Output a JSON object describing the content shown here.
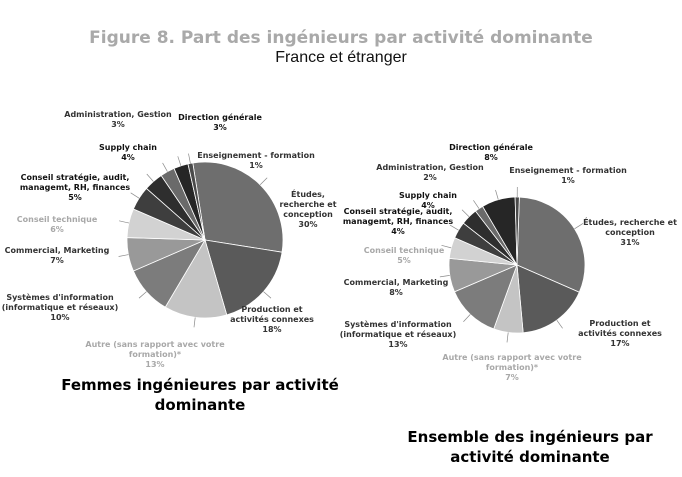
{
  "figure": {
    "title": "Figure 8. Part des ingénieurs par activité dominante",
    "subtitle": "France et étranger"
  },
  "captions": {
    "left": [
      "Femmes ingénieures par activité",
      "dominante"
    ],
    "right": [
      "Ensemble des ingénieurs par",
      "activité dominante"
    ]
  },
  "chart_data": [
    {
      "type": "pie",
      "title": "Femmes ingénieures par activité dominante",
      "slices": [
        {
          "label": [
            "Études,",
            "recherche et",
            "conception"
          ],
          "value": 30,
          "display": "30%",
          "color": "#6e6e6e",
          "label_color": "#333333"
        },
        {
          "label": [
            "Production et",
            "activités connexes"
          ],
          "value": 18,
          "display": "18%",
          "color": "#5a5a5a",
          "label_color": "#333333"
        },
        {
          "label": [
            "Autre (sans rapport avec votre",
            "formation)*"
          ],
          "value": 13,
          "display": "13%",
          "color": "#c4c4c4",
          "label_color": "#a8a8a8"
        },
        {
          "label": [
            "Systèmes d'information",
            "(informatique et réseaux)"
          ],
          "value": 10,
          "display": "10%",
          "color": "#7c7c7c",
          "label_color": "#333333"
        },
        {
          "label": [
            "Commercial, Marketing"
          ],
          "value": 7,
          "display": "7%",
          "color": "#999999",
          "label_color": "#333333"
        },
        {
          "label": [
            "Conseil technique"
          ],
          "value": 6,
          "display": "6%",
          "color": "#d2d2d2",
          "label_color": "#a8a8a8"
        },
        {
          "label": [
            "Conseil stratégie, audit,",
            "managemt, RH, finances"
          ],
          "value": 5,
          "display": "5%",
          "color": "#3e3e3e",
          "label_color": "#111111"
        },
        {
          "label": [
            "Supply chain"
          ],
          "value": 4,
          "display": "4%",
          "color": "#2e2e2e",
          "label_color": "#111111"
        },
        {
          "label": [
            "Administration, Gestion"
          ],
          "value": 3,
          "display": "3%",
          "color": "#6a6a6a",
          "label_color": "#333333"
        },
        {
          "label": [
            "Direction générale"
          ],
          "value": 3,
          "display": "3%",
          "color": "#262626",
          "label_color": "#111111"
        },
        {
          "label": [
            "Enseignement - formation"
          ],
          "value": 1,
          "display": "1%",
          "color": "#4a4a4a",
          "label_color": "#333333"
        }
      ]
    },
    {
      "type": "pie",
      "title": "Ensemble des ingénieurs par activité dominante",
      "slices": [
        {
          "label": [
            "Études, recherche et",
            "conception"
          ],
          "value": 31,
          "display": "31%",
          "color": "#6e6e6e",
          "label_color": "#333333"
        },
        {
          "label": [
            "Production et",
            "activités connexes"
          ],
          "value": 17,
          "display": "17%",
          "color": "#5a5a5a",
          "label_color": "#333333"
        },
        {
          "label": [
            "Autre (sans rapport avec votre",
            "formation)*"
          ],
          "value": 7,
          "display": "7%",
          "color": "#c4c4c4",
          "label_color": "#a8a8a8"
        },
        {
          "label": [
            "Systèmes d'information",
            "(informatique et réseaux)"
          ],
          "value": 13,
          "display": "13%",
          "color": "#7c7c7c",
          "label_color": "#333333"
        },
        {
          "label": [
            "Commercial, Marketing"
          ],
          "value": 8,
          "display": "8%",
          "color": "#999999",
          "label_color": "#333333"
        },
        {
          "label": [
            "Conseil technique"
          ],
          "value": 5,
          "display": "5%",
          "color": "#d2d2d2",
          "label_color": "#a8a8a8"
        },
        {
          "label": [
            "Conseil stratégie, audit,",
            "managemt, RH, finances"
          ],
          "value": 4,
          "display": "4%",
          "color": "#3e3e3e",
          "label_color": "#111111"
        },
        {
          "label": [
            "Supply chain"
          ],
          "value": 4,
          "display": "4%",
          "color": "#2e2e2e",
          "label_color": "#111111"
        },
        {
          "label": [
            "Administration, Gestion"
          ],
          "value": 2,
          "display": "2%",
          "color": "#6a6a6a",
          "label_color": "#333333"
        },
        {
          "label": [
            "Direction générale"
          ],
          "value": 8,
          "display": "8%",
          "color": "#262626",
          "label_color": "#111111"
        },
        {
          "label": [
            "Enseignement - formation"
          ],
          "value": 1,
          "display": "1%",
          "color": "#4a4a4a",
          "label_color": "#333333"
        }
      ]
    }
  ]
}
